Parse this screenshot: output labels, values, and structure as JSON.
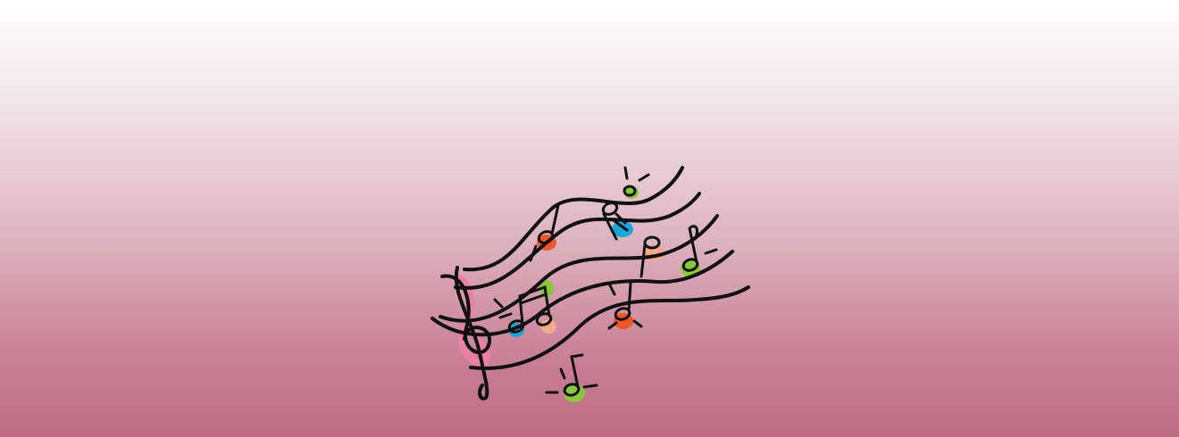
{
  "banner": {
    "background_top": "#ffffff",
    "background_bottom": "#bf6b85"
  },
  "illustration": {
    "subject": "music-notes-icon",
    "colors": {
      "ink": "#111111",
      "orange": "#f0562a",
      "blue": "#1aa6d8",
      "green": "#8cc63f",
      "peach": "#f6a98a",
      "pink": "#ec7fa5"
    }
  }
}
